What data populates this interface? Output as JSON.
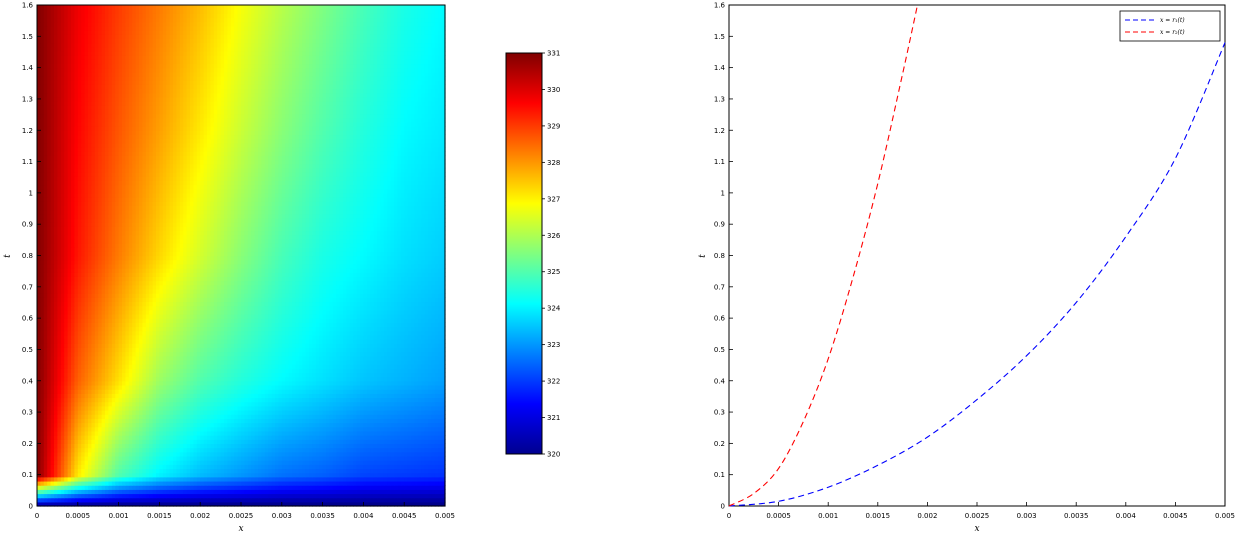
{
  "chart_data": [
    {
      "type": "heatmap",
      "xlabel": "x",
      "ylabel": "t",
      "xlim": [
        0,
        0.005
      ],
      "ylim": [
        0,
        1.6
      ],
      "x_ticks": [
        "0",
        "0.0005",
        "0.001",
        "0.0015",
        "0.002",
        "0.0025",
        "0.003",
        "0.0035",
        "0.004",
        "0.0045",
        "0.005"
      ],
      "y_ticks": [
        "0",
        "0.1",
        "0.2",
        "0.3",
        "0.4",
        "0.5",
        "0.6",
        "0.7",
        "0.8",
        "0.9",
        "1",
        "1.1",
        "1.2",
        "1.3",
        "1.4",
        "1.5",
        "1.6"
      ],
      "colormap": "jet",
      "colorbar": {
        "range": [
          320,
          331
        ],
        "ticks": [
          "320",
          "321",
          "322",
          "323",
          "324",
          "325",
          "326",
          "327",
          "328",
          "329",
          "330",
          "331"
        ]
      },
      "field_samples": {
        "x": [
          0,
          0.0005,
          0.001,
          0.0015,
          0.002,
          0.0025,
          0.003,
          0.0035,
          0.004,
          0.0045,
          0.005
        ],
        "t": [
          0,
          0.1,
          0.4,
          0.8,
          1.2,
          1.6
        ],
        "values": [
          [
            320,
            320,
            320,
            320,
            320,
            320,
            320,
            320,
            320,
            320,
            320
          ],
          [
            331,
            327.1,
            325,
            324,
            323.4,
            323,
            322.6,
            322.4,
            322.1,
            322,
            321.9
          ],
          [
            331,
            328.6,
            327.2,
            325.8,
            325,
            324.5,
            324.1,
            323.8,
            323.5,
            323.3,
            323.1
          ],
          [
            331,
            329.4,
            328.3,
            327.3,
            326.4,
            325.6,
            324.9,
            324.4,
            324.1,
            323.8,
            323.6
          ],
          [
            331,
            329.6,
            328.7,
            327.9,
            327.1,
            326.3,
            325.6,
            325,
            324.5,
            324.1,
            323.9
          ],
          [
            331,
            329.8,
            329,
            328.3,
            327.6,
            326.8,
            326.1,
            325.5,
            324.9,
            324.4,
            324.1
          ]
        ]
      }
    },
    {
      "type": "line",
      "xlabel": "x",
      "ylabel": "t",
      "xlim": [
        0,
        0.005
      ],
      "ylim": [
        0,
        1.6
      ],
      "x_ticks": [
        "0",
        "0.0005",
        "0.001",
        "0.0015",
        "0.002",
        "0.0025",
        "0.003",
        "0.0035",
        "0.004",
        "0.0045",
        "0.005"
      ],
      "y_ticks": [
        "0",
        "0.1",
        "0.2",
        "0.3",
        "0.4",
        "0.5",
        "0.6",
        "0.7",
        "0.8",
        "0.9",
        "1",
        "1.1",
        "1.2",
        "1.3",
        "1.4",
        "1.5",
        "1.6"
      ],
      "legend_position": "top-right",
      "series": [
        {
          "name": "x = r₁(t)",
          "color": "#0000ff",
          "dash": "dashed",
          "x": [
            0,
            0.0005,
            0.001,
            0.0015,
            0.002,
            0.0025,
            0.003,
            0.0035,
            0.004,
            0.0045,
            0.005
          ],
          "y": [
            0,
            0.015,
            0.06,
            0.13,
            0.22,
            0.34,
            0.48,
            0.65,
            0.86,
            1.11,
            1.48
          ]
        },
        {
          "name": "x = r₂(t)",
          "color": "#ff0000",
          "dash": "dashed",
          "x": [
            0,
            0.00025,
            0.0005,
            0.00075,
            0.001,
            0.00125,
            0.0015,
            0.00175,
            0.0019
          ],
          "y": [
            0,
            0.04,
            0.12,
            0.27,
            0.47,
            0.73,
            1.03,
            1.38,
            1.6
          ]
        }
      ]
    }
  ]
}
